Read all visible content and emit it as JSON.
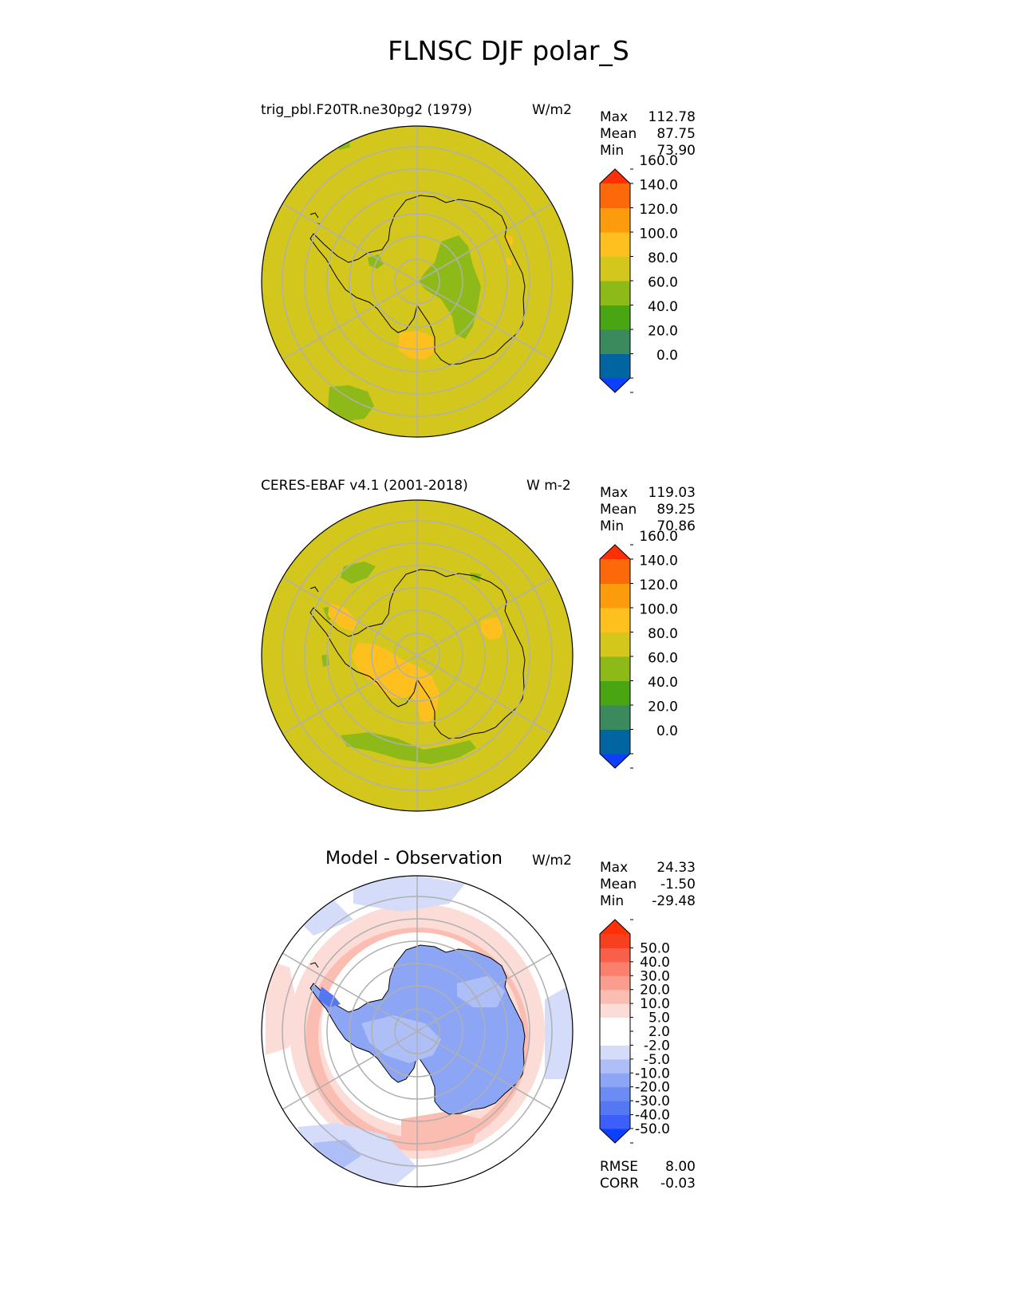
{
  "title": "FLNSC DJF polar_S",
  "panels": [
    {
      "title": "trig_pbl.F20TR.ne30pg2 (1979)",
      "units": "W/m2",
      "stats": [
        {
          "label": "Max",
          "value": "112.78"
        },
        {
          "label": "Mean",
          "value": "87.75"
        },
        {
          "label": "Min",
          "value": "73.90"
        }
      ]
    },
    {
      "title": "CERES-EBAF v4.1 (2001-2018)",
      "units": "W m-2",
      "stats": [
        {
          "label": "Max",
          "value": "119.03"
        },
        {
          "label": "Mean",
          "value": "89.25"
        },
        {
          "label": "Min",
          "value": "70.86"
        }
      ]
    },
    {
      "title": "Model - Observation",
      "units": "W/m2",
      "stats": [
        {
          "label": "Max",
          "value": "24.33"
        },
        {
          "label": "Mean",
          "value": "-1.50"
        },
        {
          "label": "Min",
          "value": "-29.48"
        }
      ],
      "extra_stats": [
        {
          "label": "RMSE",
          "value": "8.00"
        },
        {
          "label": "CORR",
          "value": "-0.03"
        }
      ]
    }
  ],
  "colorbars": {
    "main": {
      "colors": [
        "#0d3fff",
        "#0065a0",
        "#3a8a5e",
        "#4aa512",
        "#8dba18",
        "#d3c71e",
        "#fdc01e",
        "#fc9b0c",
        "#fc690a",
        "#ff2f06"
      ],
      "ticks": [
        "0.0",
        "20.0",
        "40.0",
        "60.0",
        "80.0",
        "100.0",
        "120.0",
        "140.0",
        "160.0"
      ]
    },
    "diff": {
      "colors": [
        "#0d3fff",
        "#3b5ff8",
        "#5477f4",
        "#6c8bf3",
        "#8ca5f4",
        "#aebef6",
        "#d4dcf9",
        "#ffffff",
        "#ffffff",
        "#fbdcd7",
        "#fbbdb2",
        "#fa9d8f",
        "#fa7f6c",
        "#f95f49",
        "#f7401f",
        "#ff2f06"
      ],
      "ticks": [
        "-50.0",
        "-40.0",
        "-30.0",
        "-20.0",
        "-10.0",
        "-5.0",
        "-2.0",
        "2.0",
        "5.0",
        "10.0",
        "20.0",
        "30.0",
        "40.0",
        "50.0"
      ]
    }
  },
  "chart_data": [
    {
      "type": "heatmap",
      "title": "trig_pbl.F20TR.ne30pg2 (1979)",
      "projection": "south polar stereographic",
      "units": "W/m2",
      "levels": [
        0,
        20,
        40,
        60,
        80,
        100,
        120,
        140,
        160
      ],
      "stats": {
        "max": 112.78,
        "mean": 87.75,
        "min": 73.9
      }
    },
    {
      "type": "heatmap",
      "title": "CERES-EBAF v4.1 (2001-2018)",
      "projection": "south polar stereographic",
      "units": "W m-2",
      "levels": [
        0,
        20,
        40,
        60,
        80,
        100,
        120,
        140,
        160
      ],
      "stats": {
        "max": 119.03,
        "mean": 89.25,
        "min": 70.86
      }
    },
    {
      "type": "heatmap",
      "title": "Model - Observation",
      "projection": "south polar stereographic",
      "units": "W/m2",
      "levels": [
        -50,
        -40,
        -30,
        -20,
        -10,
        -5,
        -2,
        2,
        5,
        10,
        20,
        30,
        40,
        50
      ],
      "stats": {
        "max": 24.33,
        "mean": -1.5,
        "min": -29.48,
        "rmse": 8.0,
        "corr": -0.03
      }
    }
  ]
}
